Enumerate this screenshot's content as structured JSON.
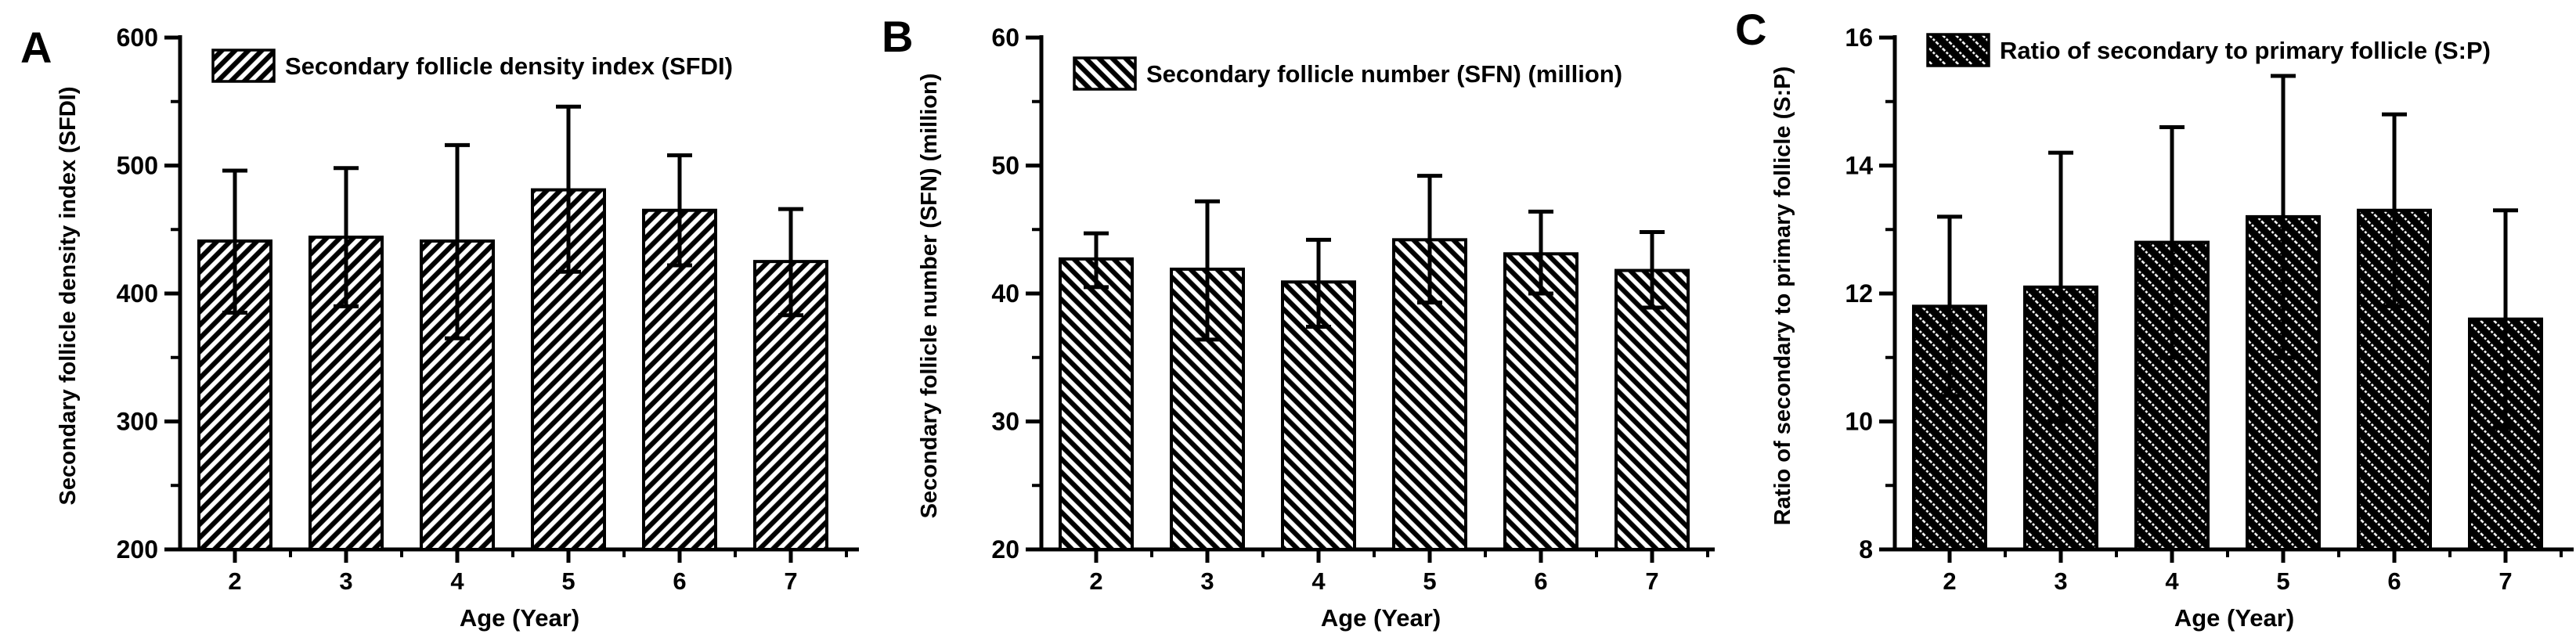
{
  "figure": {
    "background": "#ffffff",
    "ink_color": "#000000",
    "panel_letters": [
      "A",
      "B",
      "C"
    ]
  },
  "chart_data": [
    {
      "type": "bar",
      "panel_label": "A",
      "legend_label": "Secondary follicle density index (SFDI)",
      "legend_position": "top-left",
      "xlabel": "Age (Year)",
      "ylabel": "Secondary follicle density index (SFDI)",
      "categories": [
        "2",
        "3",
        "4",
        "5",
        "6",
        "7"
      ],
      "values": [
        441,
        444,
        441,
        481,
        465,
        425
      ],
      "errors_plus": [
        55,
        54,
        75,
        65,
        43,
        41
      ],
      "errors_minus": [
        56,
        54,
        76,
        64,
        43,
        42
      ],
      "ylim": [
        200,
        600
      ],
      "yticks": [
        200,
        300,
        400,
        500,
        600
      ],
      "yminor_ticks": [
        250,
        350,
        450,
        550
      ],
      "grid": false,
      "bar_fill": "#ffffff",
      "hatch_color": "#000000",
      "hatch_style": "diagonal-forward"
    },
    {
      "type": "bar",
      "panel_label": "B",
      "legend_label": "Secondary follicle number (SFN) (million)",
      "legend_position": "top-left",
      "xlabel": "Age (Year)",
      "ylabel": "Secondary follicle number (SFN) (million)",
      "categories": [
        "2",
        "3",
        "4",
        "5",
        "6",
        "7"
      ],
      "values": [
        42.7,
        41.9,
        40.9,
        44.2,
        43.1,
        41.8
      ],
      "errors_plus": [
        2.0,
        5.3,
        3.3,
        5.0,
        3.3,
        3.0
      ],
      "errors_minus": [
        2.2,
        5.5,
        3.5,
        4.9,
        3.1,
        2.9
      ],
      "ylim": [
        20,
        60
      ],
      "yticks": [
        20,
        30,
        40,
        50,
        60
      ],
      "yminor_ticks": [
        25,
        35,
        45,
        55
      ],
      "grid": false,
      "bar_fill": "#ffffff",
      "hatch_color": "#000000",
      "hatch_style": "diagonal-back"
    },
    {
      "type": "bar",
      "panel_label": "C",
      "legend_label": "Ratio of secondary to primary follicle (S:P)",
      "legend_position": "top-left",
      "xlabel": "Age (Year)",
      "ylabel": "Ratio of secondary to primary follicle (S:P)",
      "categories": [
        "2",
        "3",
        "4",
        "5",
        "6",
        "7"
      ],
      "values": [
        11.8,
        12.1,
        12.8,
        13.2,
        13.3,
        11.6
      ],
      "errors_plus": [
        1.4,
        2.1,
        1.8,
        2.2,
        1.5,
        1.7
      ],
      "errors_minus": [
        1.4,
        2.1,
        1.8,
        2.2,
        1.5,
        1.7
      ],
      "ylim": [
        8,
        16
      ],
      "yticks": [
        8,
        10,
        12,
        14,
        16
      ],
      "yminor_ticks": [
        9,
        11,
        13,
        15
      ],
      "grid": false,
      "bar_fill": "#000000",
      "hatch_color": "#ffffff",
      "hatch_style": "diagonal-back-light-on-dark"
    }
  ]
}
